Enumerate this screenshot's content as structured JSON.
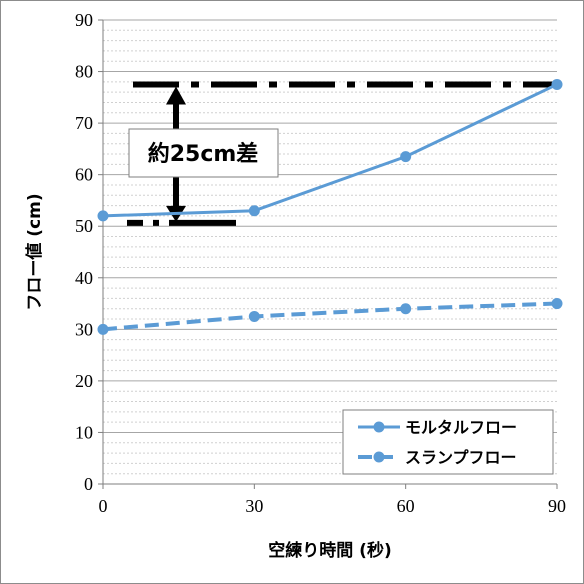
{
  "chart_data": {
    "type": "line",
    "x": [
      0,
      30,
      60,
      90
    ],
    "xlim": [
      0,
      90
    ],
    "ylim": [
      0,
      90
    ],
    "xticks": [
      "0",
      "30",
      "60",
      "90"
    ],
    "yticks": [
      "0",
      "10",
      "20",
      "30",
      "40",
      "50",
      "60",
      "70",
      "80",
      "90"
    ],
    "xlabel": "空練り時間 (秒)",
    "ylabel": "フロー値 (cm)",
    "grid": "horizontal major and minor",
    "legend_position": "bottom-right",
    "series": [
      {
        "name": "モルタルフロー",
        "values": [
          52,
          53,
          63.5,
          77.5
        ],
        "color": "#5b9bd5",
        "style": "solid"
      },
      {
        "name": "スランプフロー",
        "values": [
          30,
          32.5,
          34,
          35
        ],
        "color": "#5b9bd5",
        "style": "dashed"
      }
    ],
    "annotation": {
      "text": "約25cm差",
      "upper_value": 77.5,
      "lower_value": 52
    }
  }
}
